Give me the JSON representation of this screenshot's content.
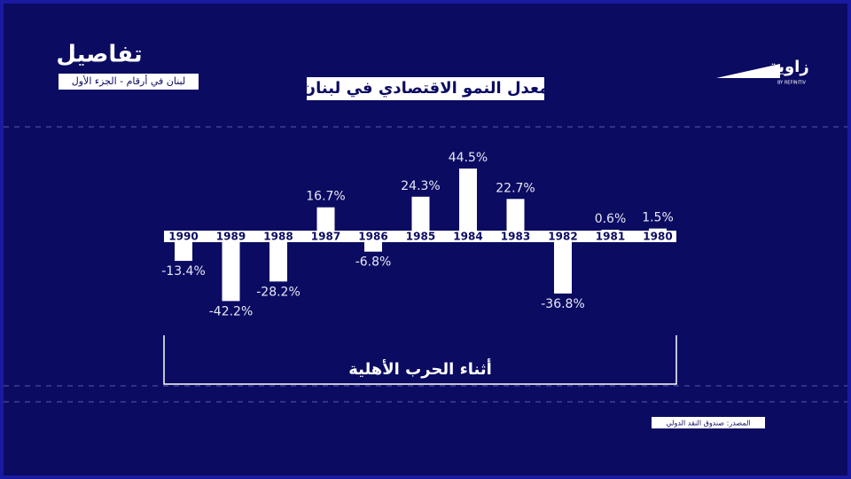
{
  "chart_data": {
    "type": "bar",
    "title": "معدل النمو الاقتصادي في لبنان",
    "categories": [
      "1990",
      "1989",
      "1988",
      "1987",
      "1986",
      "1985",
      "1984",
      "1983",
      "1982",
      "1981",
      "1980"
    ],
    "values": [
      -13.4,
      -42.2,
      -28.2,
      16.7,
      -6.8,
      24.3,
      44.5,
      22.7,
      -36.8,
      0.6,
      1.5
    ],
    "value_labels": [
      "-13.4%",
      "-42.2%",
      "-28.2%",
      "16.7%",
      "-6.8%",
      "24.3%",
      "44.5%",
      "22.7%",
      "-36.8%",
      "0.6%",
      "1.5%"
    ],
    "color": "#ffffff",
    "annotation": "أثناء الحرب الأهلية",
    "source": "المصدر: صندوق النقد الدولي"
  },
  "header": {
    "title": "تفاصيل",
    "subtitle": "لبنان في أرقام - الجزء الأول"
  },
  "logo": {
    "name": "زاوية",
    "tagline": "BY REFINITIV"
  }
}
